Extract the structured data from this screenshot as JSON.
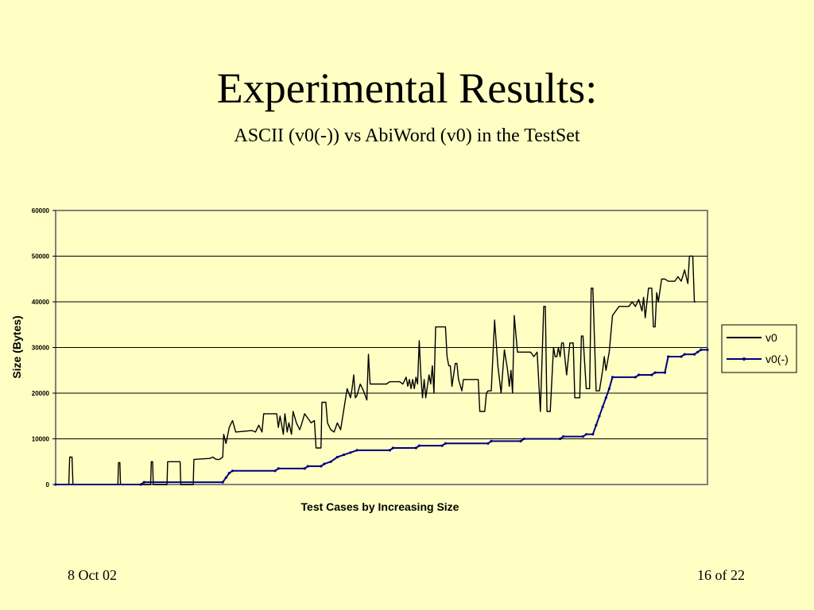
{
  "slide": {
    "title": "Experimental Results:",
    "subtitle": "ASCII (v0(-)) vs AbiWord (v0) in the TestSet",
    "date": "8 Oct 02",
    "page": "16 of 22"
  },
  "colors": {
    "background": "#FFFFC4",
    "v0": "#000000",
    "v0_minus": "#000080",
    "grid": "#000000"
  },
  "chart_data": {
    "type": "line",
    "title": "",
    "xlabel": "Test Cases by Increasing Size",
    "ylabel": "Size (Bytes)",
    "ylim": [
      0,
      60000
    ],
    "yticks": [
      0,
      10000,
      20000,
      30000,
      40000,
      50000,
      60000
    ],
    "grid": "horizontal",
    "legend_position": "right",
    "x_count": 200,
    "series": [
      {
        "name": "v0",
        "color": "#000000",
        "marker": "none",
        "points": [
          [
            0,
            0
          ],
          [
            4,
            0
          ],
          [
            4.3,
            6000
          ],
          [
            5,
            6000
          ],
          [
            5.3,
            0
          ],
          [
            19,
            0
          ],
          [
            19.2,
            4800
          ],
          [
            19.6,
            4800
          ],
          [
            19.8,
            0
          ],
          [
            29,
            0
          ],
          [
            29.2,
            5000
          ],
          [
            29.6,
            5000
          ],
          [
            29.8,
            0
          ],
          [
            34,
            0
          ],
          [
            34.2,
            5000
          ],
          [
            38,
            5000
          ],
          [
            38.2,
            0
          ],
          [
            42,
            0
          ],
          [
            42.2,
            5500
          ],
          [
            47,
            5700
          ],
          [
            48,
            6000
          ],
          [
            49,
            5500
          ],
          [
            50,
            5500
          ],
          [
            51,
            6000
          ],
          [
            51.3,
            11000
          ],
          [
            52,
            9000
          ],
          [
            53,
            12500
          ],
          [
            54,
            14000
          ],
          [
            55,
            11500
          ],
          [
            60,
            11800
          ],
          [
            61,
            11500
          ],
          [
            62,
            13000
          ],
          [
            63,
            11500
          ],
          [
            63.5,
            15500
          ],
          [
            67.5,
            15500
          ],
          [
            68,
            12500
          ],
          [
            68.5,
            15000
          ],
          [
            69.5,
            11000
          ],
          [
            70,
            15500
          ],
          [
            70.7,
            11500
          ],
          [
            71.2,
            13500
          ],
          [
            72,
            11000
          ],
          [
            72.5,
            16000
          ],
          [
            73.5,
            13500
          ],
          [
            74.5,
            12000
          ],
          [
            75,
            13000
          ],
          [
            76,
            15500
          ],
          [
            78,
            13500
          ],
          [
            79,
            14000
          ],
          [
            79.5,
            8000
          ],
          [
            81,
            8000
          ],
          [
            81.3,
            18000
          ],
          [
            82.5,
            18000
          ],
          [
            83,
            13500
          ],
          [
            84,
            12000
          ],
          [
            85,
            11500
          ],
          [
            86,
            13500
          ],
          [
            87,
            12000
          ],
          [
            88,
            16500
          ],
          [
            89,
            21000
          ],
          [
            90,
            19000
          ],
          [
            90.5,
            21000
          ],
          [
            91,
            24000
          ],
          [
            91.5,
            19000
          ],
          [
            92,
            19500
          ],
          [
            93,
            22000
          ],
          [
            94,
            20500
          ],
          [
            95,
            18500
          ],
          [
            95.5,
            28500
          ],
          [
            96,
            22000
          ],
          [
            97,
            22000
          ],
          [
            101,
            22000
          ],
          [
            102,
            22500
          ],
          [
            105,
            22500
          ],
          [
            106,
            22000
          ],
          [
            107,
            23500
          ],
          [
            107.5,
            21500
          ],
          [
            108,
            23000
          ],
          [
            108.5,
            21000
          ],
          [
            109,
            23000
          ],
          [
            109.5,
            21000
          ],
          [
            110,
            23500
          ],
          [
            110.5,
            22000
          ],
          [
            111,
            31500
          ],
          [
            111.5,
            24000
          ],
          [
            112,
            19000
          ],
          [
            112.5,
            23000
          ],
          [
            113,
            19000
          ],
          [
            114,
            24000
          ],
          [
            114.5,
            22000
          ],
          [
            115,
            26000
          ],
          [
            115.5,
            20000
          ],
          [
            116,
            34500
          ],
          [
            119,
            34500
          ],
          [
            119.5,
            28000
          ],
          [
            120,
            26000
          ],
          [
            120.5,
            26000
          ],
          [
            121,
            21500
          ],
          [
            122,
            26500
          ],
          [
            122.5,
            26500
          ],
          [
            123,
            23000
          ],
          [
            124,
            20500
          ],
          [
            124.5,
            23000
          ],
          [
            129,
            23000
          ],
          [
            129.5,
            16000
          ],
          [
            131,
            16000
          ],
          [
            131.5,
            20000
          ],
          [
            132,
            20500
          ],
          [
            133,
            20500
          ],
          [
            134,
            36000
          ],
          [
            135,
            26000
          ],
          [
            136,
            20000
          ],
          [
            137,
            29500
          ],
          [
            138,
            25000
          ],
          [
            138.5,
            21500
          ],
          [
            139,
            25000
          ],
          [
            139.5,
            20000
          ],
          [
            140,
            37000
          ],
          [
            141,
            29000
          ],
          [
            145,
            29000
          ],
          [
            146,
            28000
          ],
          [
            146.5,
            28500
          ],
          [
            147,
            29000
          ],
          [
            148,
            16000
          ],
          [
            149,
            39000
          ],
          [
            149.5,
            39000
          ],
          [
            150,
            16000
          ],
          [
            151,
            16000
          ],
          [
            152,
            30000
          ],
          [
            152.5,
            28000
          ],
          [
            153,
            28000
          ],
          [
            153.5,
            30000
          ],
          [
            154,
            28000
          ],
          [
            154.5,
            31000
          ],
          [
            155,
            31000
          ],
          [
            156,
            24000
          ],
          [
            157,
            31000
          ],
          [
            158,
            31000
          ],
          [
            158.5,
            19000
          ],
          [
            159,
            19000
          ],
          [
            160,
            19000
          ],
          [
            160.5,
            32500
          ],
          [
            161,
            32500
          ],
          [
            162,
            21000
          ],
          [
            163,
            21000
          ],
          [
            163.5,
            43000
          ],
          [
            164,
            43000
          ],
          [
            165,
            20500
          ],
          [
            166,
            20500
          ],
          [
            167,
            25000
          ],
          [
            167.5,
            28000
          ],
          [
            168,
            25000
          ],
          [
            169,
            29000
          ],
          [
            170,
            37000
          ],
          [
            171,
            38000
          ],
          [
            172,
            39000
          ],
          [
            175,
            39000
          ],
          [
            176,
            40000
          ],
          [
            177,
            39000
          ],
          [
            178,
            40500
          ],
          [
            179,
            38000
          ],
          [
            179.5,
            41000
          ],
          [
            180,
            36500
          ],
          [
            181,
            43000
          ],
          [
            182,
            43000
          ],
          [
            182.5,
            34500
          ],
          [
            183,
            34500
          ],
          [
            183.5,
            42000
          ],
          [
            184,
            40000
          ],
          [
            185,
            45000
          ],
          [
            186,
            45000
          ],
          [
            187,
            44500
          ],
          [
            189,
            44500
          ],
          [
            190,
            45500
          ],
          [
            191,
            44500
          ],
          [
            192,
            47000
          ],
          [
            193,
            44000
          ],
          [
            193.5,
            50000
          ],
          [
            194.5,
            50000
          ],
          [
            195,
            40000
          ],
          [
            195.5,
            40000
          ]
        ]
      },
      {
        "name": "v0(-)",
        "color": "#000080",
        "marker": "dot",
        "points": [
          [
            0,
            0
          ],
          [
            26,
            0
          ],
          [
            27,
            500
          ],
          [
            51,
            500
          ],
          [
            52,
            1500
          ],
          [
            53,
            2500
          ],
          [
            54,
            3000
          ],
          [
            67,
            3000
          ],
          [
            68,
            3500
          ],
          [
            76,
            3500
          ],
          [
            77,
            4000
          ],
          [
            81,
            4000
          ],
          [
            82,
            4500
          ],
          [
            84,
            5000
          ],
          [
            86,
            6000
          ],
          [
            88,
            6500
          ],
          [
            90,
            7000
          ],
          [
            92,
            7500
          ],
          [
            102,
            7500
          ],
          [
            103,
            8000
          ],
          [
            110,
            8000
          ],
          [
            111,
            8500
          ],
          [
            118,
            8500
          ],
          [
            119,
            9000
          ],
          [
            132,
            9000
          ],
          [
            133,
            9500
          ],
          [
            142,
            9500
          ],
          [
            143,
            10000
          ],
          [
            154,
            10000
          ],
          [
            155,
            10500
          ],
          [
            161,
            10500
          ],
          [
            162,
            11000
          ],
          [
            164,
            11000
          ],
          [
            165,
            13000
          ],
          [
            166,
            15000
          ],
          [
            167,
            17000
          ],
          [
            168,
            19000
          ],
          [
            169,
            21000
          ],
          [
            170,
            23500
          ],
          [
            177,
            23500
          ],
          [
            178,
            24000
          ],
          [
            182,
            24000
          ],
          [
            183,
            24500
          ],
          [
            186,
            24500
          ],
          [
            187,
            28000
          ],
          [
            191,
            28000
          ],
          [
            192,
            28500
          ],
          [
            195,
            28500
          ],
          [
            196,
            29000
          ],
          [
            197,
            29500
          ],
          [
            199,
            29500
          ]
        ]
      }
    ]
  }
}
